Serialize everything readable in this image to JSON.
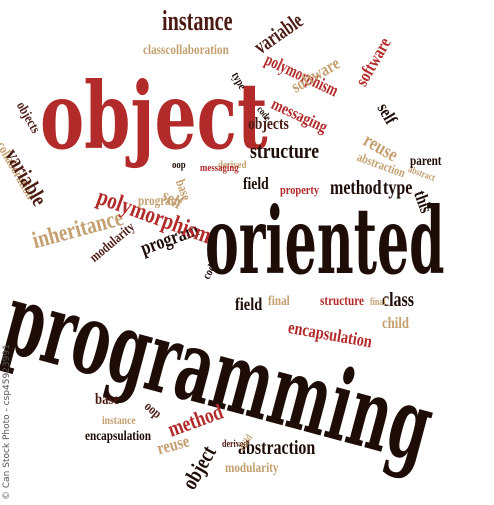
{
  "palette": {
    "dark": "#1e0c07",
    "red": "#b22a2a",
    "tan": "#c4a070",
    "brown": "#4b1a12"
  },
  "words": [
    "object",
    "oriented",
    "programming",
    "instance",
    "classcollaboration",
    "variable",
    "polymorphism",
    "software",
    "messaging",
    "objects",
    "structure",
    "abstraction",
    "reuse",
    "parent",
    "self",
    "method",
    "type",
    "this",
    "property",
    "field",
    "derived",
    "oop",
    "base",
    "inheritance",
    "modularity",
    "program",
    "code",
    "final",
    "class",
    "child",
    "encapsulation",
    "collaboration",
    "variable",
    "objects",
    "polymorphism",
    "program",
    "self",
    "base",
    "instance",
    "oop",
    "method",
    "reuse",
    "abstraction",
    "encapsulation",
    "modularity",
    "object",
    "derived",
    "child",
    "code",
    "type",
    "structure",
    "final",
    "field",
    "messaging",
    "software",
    "abstract"
  ],
  "watermark": "© Can Stock Photo - csp45923991"
}
